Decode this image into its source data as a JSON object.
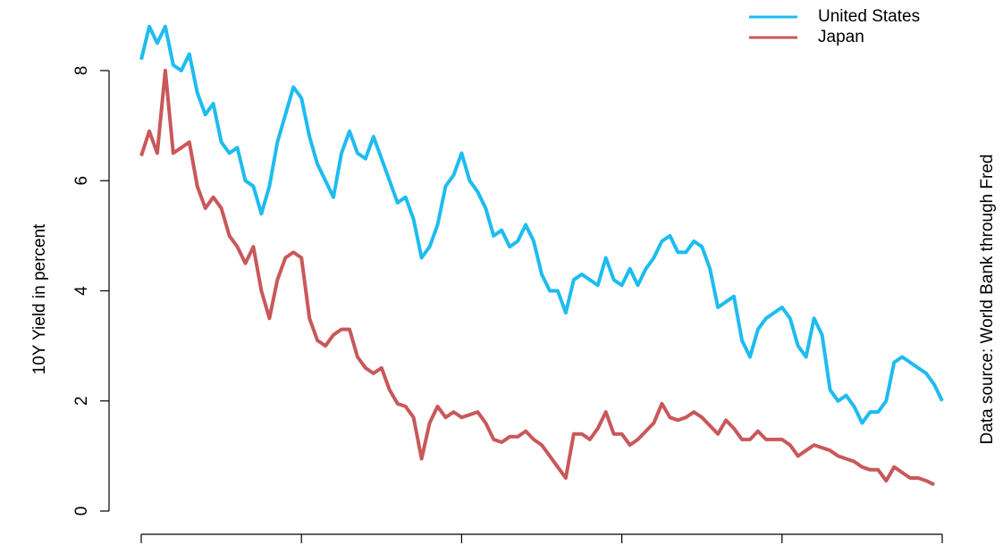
{
  "chart_data": {
    "type": "line",
    "y_label": "10Y Yield in percent",
    "annotation": "Data source: World Bank through Fred",
    "x": [
      0,
      0.25,
      0.5,
      0.75,
      1,
      1.25,
      1.5,
      1.75,
      2,
      2.25,
      2.5,
      2.75,
      3,
      3.25,
      3.5,
      3.75,
      4,
      4.25,
      4.5,
      4.75,
      5,
      5.25,
      5.5,
      5.75,
      6,
      6.25,
      6.5,
      6.75,
      7,
      7.25,
      7.5,
      7.75,
      8,
      8.25,
      8.5,
      8.75,
      9,
      9.25,
      9.5,
      9.75,
      10,
      10.25,
      10.5,
      10.75,
      11,
      11.25,
      11.5,
      11.75,
      12,
      12.25,
      12.5,
      12.75,
      13,
      13.25,
      13.5,
      13.75,
      14,
      14.25,
      14.5,
      14.75,
      15,
      15.25,
      15.5,
      15.75,
      16,
      16.25,
      16.5,
      16.75,
      17,
      17.25,
      17.5,
      17.75,
      18,
      18.25,
      18.5,
      18.75,
      19,
      19.25,
      19.5,
      19.75,
      20,
      20.25,
      20.5,
      20.75,
      21,
      21.25,
      21.5,
      21.75,
      22,
      22.25,
      22.5,
      22.75,
      23,
      23.25,
      23.5,
      23.75,
      24,
      24.25,
      24.5,
      24.75,
      25
    ],
    "series": [
      {
        "name": "United States",
        "color": "#1ebcf0",
        "values": [
          8.2,
          8.8,
          8.5,
          8.8,
          8.1,
          8.0,
          8.3,
          7.6,
          7.2,
          7.4,
          6.7,
          6.5,
          6.6,
          6.0,
          5.9,
          5.4,
          5.9,
          6.7,
          7.2,
          7.7,
          7.5,
          6.8,
          6.3,
          6.0,
          5.7,
          6.5,
          6.9,
          6.5,
          6.4,
          6.8,
          6.4,
          6.0,
          5.6,
          5.7,
          5.3,
          4.6,
          4.8,
          5.2,
          5.9,
          6.1,
          6.5,
          6.0,
          5.8,
          5.5,
          5.0,
          5.1,
          4.8,
          4.9,
          5.2,
          4.9,
          4.3,
          4.0,
          4.0,
          3.6,
          4.2,
          4.3,
          4.2,
          4.1,
          4.6,
          4.2,
          4.1,
          4.4,
          4.1,
          4.4,
          4.6,
          4.9,
          5.0,
          4.7,
          4.7,
          4.9,
          4.8,
          4.4,
          3.7,
          3.8,
          3.9,
          3.1,
          2.8,
          3.3,
          3.5,
          3.6,
          3.7,
          3.5,
          3.0,
          2.8,
          3.5,
          3.2,
          2.2,
          2.0,
          2.1,
          1.9,
          1.6,
          1.8,
          1.8,
          2.0,
          2.7,
          2.8,
          2.7,
          2.6,
          2.5,
          2.3,
          2.0
        ]
      },
      {
        "name": "Japan",
        "color": "#c9585a",
        "values": [
          6.45,
          6.9,
          6.5,
          8.0,
          6.5,
          6.6,
          6.7,
          5.9,
          5.5,
          5.7,
          5.5,
          5.0,
          4.8,
          4.5,
          4.8,
          4.0,
          3.5,
          4.2,
          4.6,
          4.7,
          4.6,
          3.5,
          3.1,
          3.0,
          3.2,
          3.3,
          3.3,
          2.8,
          2.6,
          2.5,
          2.6,
          2.2,
          1.95,
          1.9,
          1.7,
          0.95,
          1.6,
          1.9,
          1.7,
          1.8,
          1.7,
          1.75,
          1.8,
          1.6,
          1.3,
          1.25,
          1.35,
          1.35,
          1.45,
          1.3,
          1.2,
          1.0,
          0.8,
          0.6,
          1.4,
          1.4,
          1.3,
          1.5,
          1.8,
          1.4,
          1.4,
          1.2,
          1.3,
          1.45,
          1.6,
          1.95,
          1.7,
          1.65,
          1.7,
          1.8,
          1.7,
          1.55,
          1.4,
          1.65,
          1.5,
          1.3,
          1.3,
          1.45,
          1.3,
          1.3,
          1.3,
          1.2,
          1.0,
          1.1,
          1.2,
          1.15,
          1.1,
          1.0,
          0.95,
          0.9,
          0.8,
          0.75,
          0.75,
          0.55,
          0.8,
          0.7,
          0.6,
          0.6,
          0.55,
          0.48,
          null
        ]
      }
    ],
    "xlim": [
      0,
      25
    ],
    "xticks": [
      0,
      5,
      10,
      15,
      20,
      25
    ],
    "ylim": [
      0,
      8
    ],
    "yticks": [
      0,
      2,
      4,
      6,
      8
    ],
    "legend": "top-right"
  }
}
